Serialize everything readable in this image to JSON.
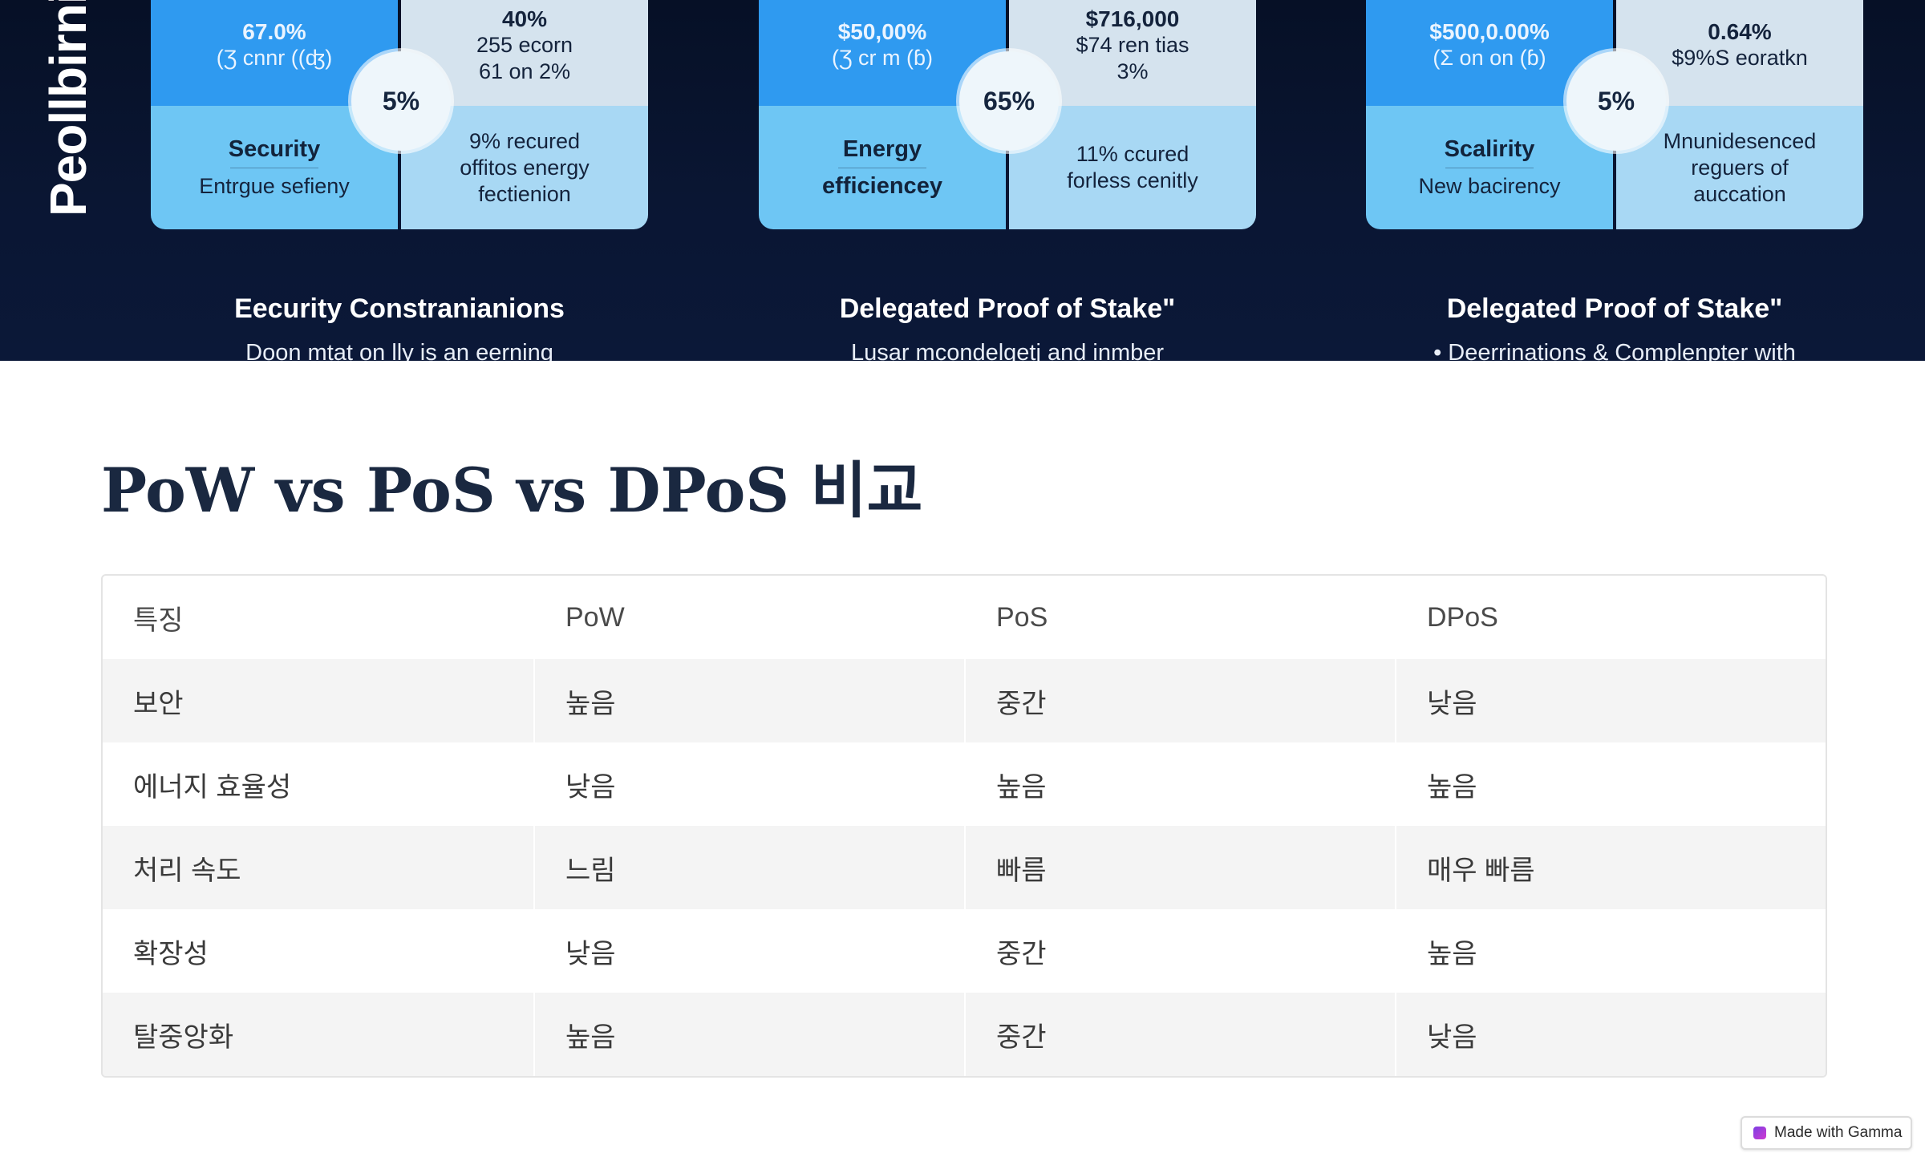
{
  "banner": {
    "vertical_label": "Peollbirnie",
    "panels": [
      {
        "tl_big": "67.0%",
        "tl_sub": "(Ʒ cnnr ((ʤ)",
        "tr_lines": [
          "40%",
          "255 ecorn",
          "61 on 2%"
        ],
        "badge": "5%",
        "bl_title": "Security",
        "bl_sub": "Entrgue sefieny",
        "br_lines": [
          "9% recured",
          "offitos energy",
          "fectienion"
        ],
        "caption": "Eecurity Constranianions",
        "subcaption": "Doon mtat on lly is an eerning"
      },
      {
        "tl_big": "$50,00%",
        "tl_sub": "(Ʒ cr m (ɓ)",
        "tr_lines": [
          "$716,000",
          "$74 ren tias",
          "3%"
        ],
        "badge": "65%",
        "bl_title": "Energy",
        "bl_sub": "efficiencey",
        "br_lines": [
          "11% ccured",
          "forless cenitly"
        ],
        "caption": "Delegated Proof of Stake\"",
        "subcaption": "Lusar mcondelgetj and inmber"
      },
      {
        "tl_big": "$500,0.00%",
        "tl_sub": "(Ʃ on on (ɓ)",
        "tr_lines": [
          "0.64%",
          "$9%S eoratkn"
        ],
        "badge": "5%",
        "bl_title": "Scalirity",
        "bl_sub": "New bacirency",
        "br_lines": [
          "Mnunidesenced",
          "reguers of",
          "auccation"
        ],
        "caption": "Delegated Proof of Stake\"",
        "subcaption": "• Deerrinations & Complenpter with"
      }
    ]
  },
  "heading": "PoW vs PoS vs DPoS 비교",
  "table": {
    "headers": [
      "특징",
      "PoW",
      "PoS",
      "DPoS"
    ],
    "rows": [
      [
        "보안",
        "높음",
        "중간",
        "낮음"
      ],
      [
        "에너지 효율성",
        "낮음",
        "높음",
        "높음"
      ],
      [
        "처리 속도",
        "느림",
        "빠름",
        "매우 빠름"
      ],
      [
        "확장성",
        "낮음",
        "중간",
        "높음"
      ],
      [
        "탈중앙화",
        "높음",
        "중간",
        "낮음"
      ]
    ]
  },
  "badge": {
    "label": "Made with Gamma",
    "icon": "gamma-logo-icon"
  }
}
